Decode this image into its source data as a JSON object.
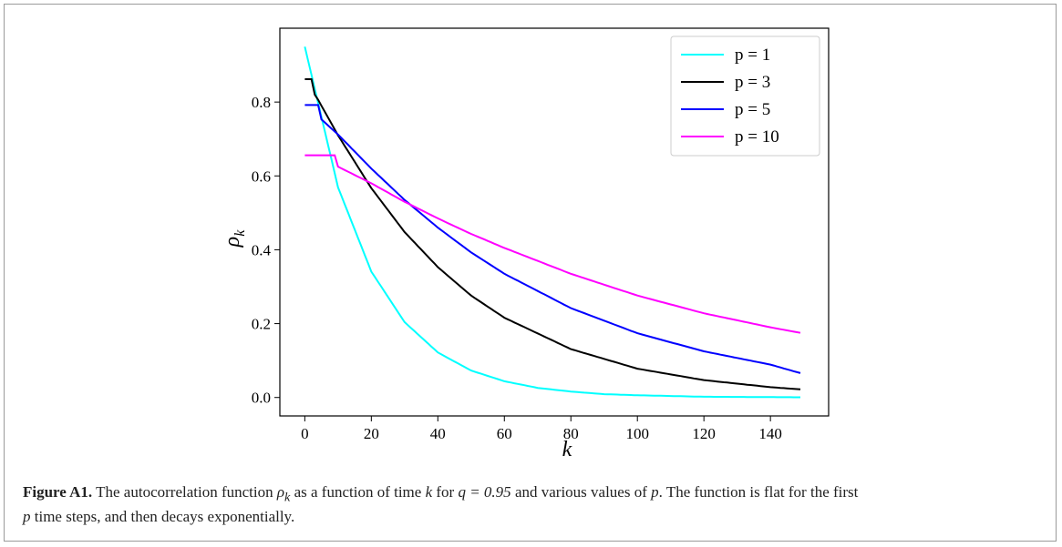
{
  "caption": {
    "label": "Figure A1.",
    "text_1": " The autocorrelation function ",
    "rho": "ρ",
    "rho_sub": "k",
    "text_2": " as a function of time ",
    "k": "k",
    "text_3": " for ",
    "q_eq": "q = 0.95",
    "text_4": " and various values of ",
    "p": "p",
    "text_5": ". The function is flat for the first ",
    "p2": "p",
    "text_6": " time steps, and then decays exponentially."
  },
  "chart_data": {
    "type": "line",
    "xlabel": "k",
    "ylabel": "ρk",
    "xlim": [
      -7.5,
      157.5
    ],
    "ylim": [
      -0.05,
      1.0
    ],
    "xticks": [
      0,
      20,
      40,
      60,
      80,
      100,
      120,
      140
    ],
    "yticks": [
      0.0,
      0.2,
      0.4,
      0.6,
      0.8
    ],
    "ytick_labels": [
      "0.0",
      "0.2",
      "0.4",
      "0.6",
      "0.8"
    ],
    "legend_position": "top-right",
    "series": [
      {
        "name": "p = 1",
        "p": 1,
        "color": "#00ffff",
        "points": [
          [
            0,
            0.95
          ],
          [
            10,
            0.569
          ],
          [
            20,
            0.341
          ],
          [
            30,
            0.204
          ],
          [
            40,
            0.122
          ],
          [
            50,
            0.073
          ],
          [
            60,
            0.044
          ],
          [
            70,
            0.026
          ],
          [
            80,
            0.016
          ],
          [
            90,
            0.009
          ],
          [
            100,
            0.006
          ],
          [
            120,
            0.002
          ],
          [
            140,
            0.001
          ],
          [
            149,
            0.0005
          ]
        ]
      },
      {
        "name": "p = 3",
        "p": 3,
        "color": "#000000",
        "points": [
          [
            0,
            0.862
          ],
          [
            2,
            0.862
          ],
          [
            3,
            0.82
          ],
          [
            4,
            0.806
          ],
          [
            10,
            0.71
          ],
          [
            20,
            0.567
          ],
          [
            30,
            0.448
          ],
          [
            40,
            0.353
          ],
          [
            50,
            0.276
          ],
          [
            60,
            0.216
          ],
          [
            80,
            0.131
          ],
          [
            100,
            0.078
          ],
          [
            120,
            0.047
          ],
          [
            140,
            0.028
          ],
          [
            149,
            0.022
          ]
        ]
      },
      {
        "name": "p = 5",
        "p": 5,
        "color": "#0000ff",
        "points": [
          [
            0,
            0.792
          ],
          [
            4,
            0.792
          ],
          [
            5,
            0.753
          ],
          [
            10,
            0.712
          ],
          [
            20,
            0.62
          ],
          [
            30,
            0.535
          ],
          [
            40,
            0.46
          ],
          [
            50,
            0.393
          ],
          [
            60,
            0.335
          ],
          [
            80,
            0.242
          ],
          [
            100,
            0.174
          ],
          [
            120,
            0.125
          ],
          [
            140,
            0.089
          ],
          [
            149,
            0.066
          ]
        ]
      },
      {
        "name": "p = 10",
        "p": 10,
        "color": "#ff00ff",
        "points": [
          [
            0,
            0.656
          ],
          [
            9,
            0.656
          ],
          [
            10,
            0.625
          ],
          [
            20,
            0.58
          ],
          [
            30,
            0.53
          ],
          [
            40,
            0.485
          ],
          [
            50,
            0.443
          ],
          [
            60,
            0.405
          ],
          [
            80,
            0.335
          ],
          [
            100,
            0.276
          ],
          [
            120,
            0.228
          ],
          [
            140,
            0.19
          ],
          [
            149,
            0.175
          ]
        ]
      }
    ]
  }
}
